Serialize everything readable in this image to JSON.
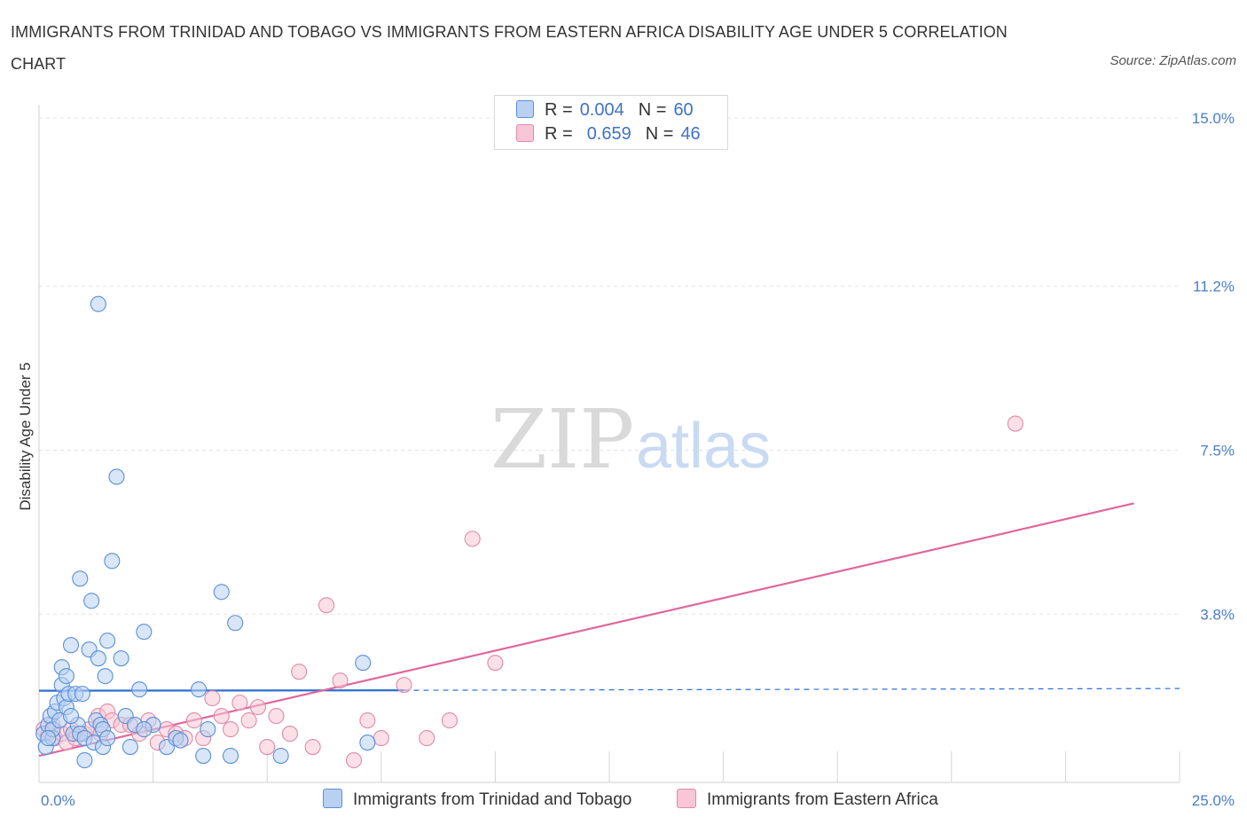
{
  "title": "IMMIGRANTS FROM TRINIDAD AND TOBAGO VS IMMIGRANTS FROM EASTERN AFRICA DISABILITY AGE UNDER 5 CORRELATION CHART",
  "source": "Source: ZipAtlas.com",
  "watermark": {
    "zip": "ZIP",
    "atlas": "atlas"
  },
  "legend": {
    "rows": [
      {
        "r_label": "R =",
        "r_value": "0.004",
        "n_label": "N =",
        "n_value": "60"
      },
      {
        "r_label": "R =",
        "r_value": "0.659",
        "n_label": "N =",
        "n_value": "46"
      }
    ]
  },
  "colors": {
    "blue_fill": "#b8d1f3",
    "blue_stroke": "#5b8fd6",
    "blue_line": "#2f6fd0",
    "pink_fill": "#f8c6d6",
    "pink_stroke": "#e08aa8",
    "pink_line": "#e0679a",
    "grid": "#e3e3e3",
    "tick_text": "#4a7cc7"
  },
  "chart_data": {
    "type": "scatter",
    "title": "IMMIGRANTS FROM TRINIDAD AND TOBAGO VS IMMIGRANTS FROM EASTERN AFRICA DISABILITY AGE UNDER 5 CORRELATION CHART",
    "xlabel": "",
    "ylabel": "Disability Age Under 5",
    "xlim": [
      0,
      25
    ],
    "ylim": [
      0,
      15
    ],
    "x_ticks": [
      {
        "value": 0,
        "label": "0.0%"
      },
      {
        "value": 25,
        "label": "25.0%"
      }
    ],
    "y_ticks": [
      {
        "value": 3.8,
        "label": "3.8%"
      },
      {
        "value": 7.5,
        "label": "7.5%"
      },
      {
        "value": 11.2,
        "label": "11.2%"
      },
      {
        "value": 15.0,
        "label": "15.0%"
      }
    ],
    "grid": true,
    "legend_position": "top-center",
    "series": [
      {
        "name": "Immigrants from Trinidad and Tobago",
        "color": "#b8d1f3",
        "R": 0.004,
        "N": 60,
        "trend": {
          "x0": 0,
          "y0": 2.07,
          "x1": 8.0,
          "y1": 2.08,
          "dashed_to_x": 25,
          "dashed_y1": 2.12
        },
        "points": [
          [
            0.1,
            1.1
          ],
          [
            0.15,
            0.8
          ],
          [
            0.2,
            1.3
          ],
          [
            0.25,
            1.5
          ],
          [
            0.3,
            1.0
          ],
          [
            0.3,
            1.2
          ],
          [
            0.35,
            1.6
          ],
          [
            0.4,
            1.8
          ],
          [
            0.45,
            1.4
          ],
          [
            0.5,
            2.6
          ],
          [
            0.5,
            2.2
          ],
          [
            0.55,
            1.9
          ],
          [
            0.6,
            2.4
          ],
          [
            0.6,
            1.7
          ],
          [
            0.65,
            2.0
          ],
          [
            0.7,
            3.1
          ],
          [
            0.75,
            1.1
          ],
          [
            0.8,
            2.0
          ],
          [
            0.85,
            1.3
          ],
          [
            0.9,
            1.1
          ],
          [
            0.9,
            4.6
          ],
          [
            0.95,
            2.0
          ],
          [
            1.0,
            1.0
          ],
          [
            1.0,
            0.5
          ],
          [
            1.1,
            3.0
          ],
          [
            1.15,
            4.1
          ],
          [
            1.2,
            0.9
          ],
          [
            1.25,
            1.4
          ],
          [
            1.3,
            2.8
          ],
          [
            1.35,
            1.3
          ],
          [
            1.4,
            0.8
          ],
          [
            1.45,
            2.4
          ],
          [
            1.5,
            3.2
          ],
          [
            1.3,
            10.8
          ],
          [
            1.4,
            1.2
          ],
          [
            1.5,
            1.0
          ],
          [
            1.6,
            5.0
          ],
          [
            1.7,
            6.9
          ],
          [
            1.8,
            2.8
          ],
          [
            1.9,
            1.5
          ],
          [
            2.0,
            0.8
          ],
          [
            2.1,
            1.3
          ],
          [
            2.3,
            3.4
          ],
          [
            2.5,
            1.3
          ],
          [
            2.3,
            1.2
          ],
          [
            2.8,
            0.8
          ],
          [
            3.0,
            1.0
          ],
          [
            3.1,
            0.95
          ],
          [
            3.5,
            2.1
          ],
          [
            3.6,
            0.6
          ],
          [
            3.7,
            1.2
          ],
          [
            4.0,
            4.3
          ],
          [
            4.2,
            0.6
          ],
          [
            4.3,
            3.6
          ],
          [
            5.3,
            0.6
          ],
          [
            7.1,
            2.7
          ],
          [
            7.2,
            0.9
          ],
          [
            0.2,
            1.0
          ],
          [
            0.7,
            1.5
          ],
          [
            2.2,
            2.1
          ]
        ]
      },
      {
        "name": "Immigrants from Eastern Africa",
        "color": "#f8c6d6",
        "R": 0.659,
        "N": 46,
        "trend": {
          "x0": 0,
          "y0": 0.6,
          "x1": 24.0,
          "y1": 6.3
        },
        "points": [
          [
            0.1,
            1.2
          ],
          [
            0.2,
            1.1
          ],
          [
            0.3,
            1.3
          ],
          [
            0.35,
            1.0
          ],
          [
            0.5,
            1.1
          ],
          [
            0.6,
            0.9
          ],
          [
            0.7,
            1.2
          ],
          [
            0.8,
            1.0
          ],
          [
            1.0,
            1.1
          ],
          [
            1.1,
            1.2
          ],
          [
            1.3,
            1.5
          ],
          [
            1.35,
            1.1
          ],
          [
            1.5,
            1.6
          ],
          [
            1.6,
            1.4
          ],
          [
            1.8,
            1.3
          ],
          [
            2.0,
            1.3
          ],
          [
            2.2,
            1.1
          ],
          [
            2.4,
            1.4
          ],
          [
            2.6,
            0.9
          ],
          [
            2.8,
            1.2
          ],
          [
            3.0,
            1.1
          ],
          [
            3.2,
            1.0
          ],
          [
            3.4,
            1.4
          ],
          [
            3.6,
            1.0
          ],
          [
            3.8,
            1.9
          ],
          [
            4.0,
            1.5
          ],
          [
            4.2,
            1.2
          ],
          [
            4.4,
            1.8
          ],
          [
            4.6,
            1.4
          ],
          [
            4.8,
            1.7
          ],
          [
            5.0,
            0.8
          ],
          [
            5.2,
            1.5
          ],
          [
            5.5,
            1.1
          ],
          [
            5.7,
            2.5
          ],
          [
            6.0,
            0.8
          ],
          [
            6.3,
            4.0
          ],
          [
            6.6,
            2.3
          ],
          [
            6.9,
            0.5
          ],
          [
            7.2,
            1.4
          ],
          [
            7.5,
            1.0
          ],
          [
            8.0,
            2.2
          ],
          [
            8.5,
            1.0
          ],
          [
            9.0,
            1.4
          ],
          [
            9.5,
            5.5
          ],
          [
            10.0,
            2.7
          ],
          [
            21.4,
            8.1
          ]
        ]
      }
    ]
  },
  "bottom_legend": [
    {
      "label": "Immigrants from Trinidad and Tobago"
    },
    {
      "label": "Immigrants from Eastern Africa"
    }
  ]
}
